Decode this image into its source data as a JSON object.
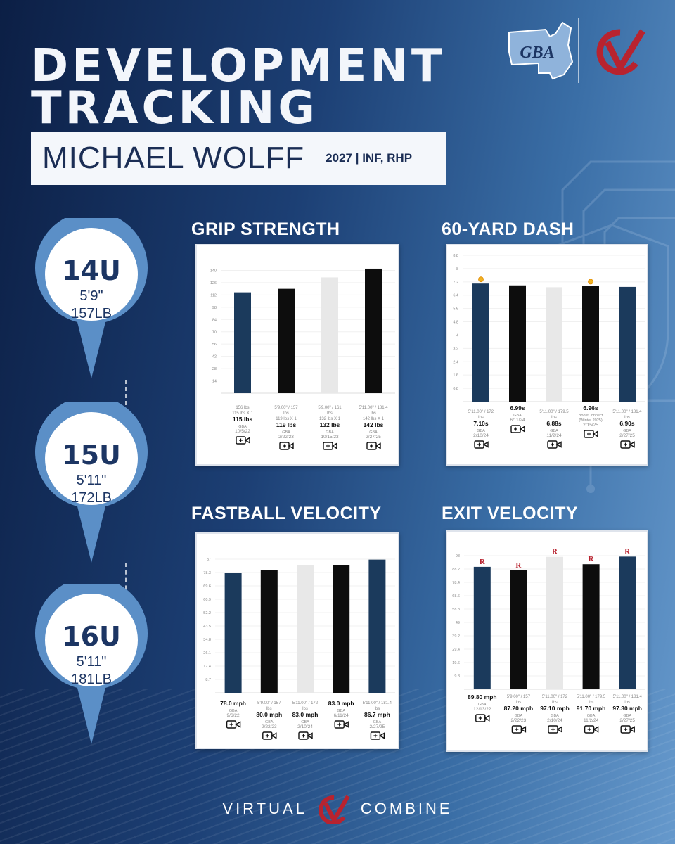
{
  "header": {
    "title_line1": "DEVELOPMENT",
    "title_line2": "TRACKING",
    "player_name": "MICHAEL WOLFF",
    "player_meta": "2027 | INF, RHP"
  },
  "logos": {
    "left_text": "GBA",
    "right_icon": "virtual-combine-check-icon"
  },
  "timeline": [
    {
      "age": "14U",
      "height": "5'9\"",
      "weight": "157LB"
    },
    {
      "age": "15U",
      "height": "5'11\"",
      "weight": "172LB"
    },
    {
      "age": "16U",
      "height": "5'11\"",
      "weight": "181LB"
    }
  ],
  "sections": {
    "grip": "GRIP STRENGTH",
    "dash": "60-YARD DASH",
    "fastball": "FASTBALL VELOCITY",
    "exit": "EXIT VELOCITY"
  },
  "footer": {
    "left": "VIRTUAL",
    "right": "COMBINE"
  },
  "colors": {
    "navy": "#1b3a5c",
    "black": "#0d0d0d",
    "light_gray": "#e8e8e8",
    "accent_red": "#b8232f",
    "medal": "#f0b323"
  },
  "chart_data": [
    {
      "id": "grip",
      "type": "bar",
      "yticks": [
        "140",
        "126",
        "112",
        "98",
        "84",
        "70",
        "56",
        "42",
        "28",
        "14"
      ],
      "ylim": [
        0,
        154
      ],
      "bars": [
        {
          "value": 115,
          "color": "navy",
          "top_label": "",
          "lines": [
            "156 lbs",
            "115 lbs X 1"
          ],
          "value_label": "115 lbs",
          "source": "GBA",
          "date": "10/5/22"
        },
        {
          "value": 119,
          "color": "black",
          "top_label": "",
          "lines": [
            "5'9.00\" / 157",
            "lbs",
            "119 lbs X 1"
          ],
          "value_label": "119 lbs",
          "source": "GBA",
          "date": "2/22/23"
        },
        {
          "value": 132,
          "color": "light_gray",
          "top_label": "",
          "lines": [
            "5'9.00\" / 161",
            "lbs",
            "132 lbs X 1"
          ],
          "value_label": "132 lbs",
          "source": "GBA",
          "date": "10/15/23"
        },
        {
          "value": 142,
          "color": "black",
          "top_label": "",
          "lines": [
            "5'11.00\" / 181.4",
            "lbs",
            "142 lbs X 1"
          ],
          "value_label": "142 lbs",
          "source": "GBA",
          "date": "2/27/25"
        }
      ]
    },
    {
      "id": "dash",
      "type": "bar",
      "yticks": [
        "8.8",
        "8",
        "7.2",
        "6.4",
        "5.6",
        "4.8",
        "4",
        "3.2",
        "2.4",
        "1.6",
        "0.8"
      ],
      "ylim": [
        0,
        8.8
      ],
      "bars": [
        {
          "value": 7.1,
          "color": "navy",
          "medal": true,
          "lines": [
            "5'11.00\" / 172",
            "lbs"
          ],
          "value_label": "7.10s",
          "source": "GBA",
          "date": "2/10/24"
        },
        {
          "value": 6.99,
          "color": "black",
          "medal": false,
          "lines": [],
          "value_label": "6.99s",
          "source": "GBA",
          "date": "6/11/24"
        },
        {
          "value": 6.88,
          "color": "light_gray",
          "medal": false,
          "lines": [
            "5'11.00\" / 179.5",
            "lbs"
          ],
          "value_label": "6.88s",
          "source": "GBA",
          "date": "11/2/24"
        },
        {
          "value": 6.96,
          "color": "black",
          "medal": true,
          "lines": [],
          "value_label": "6.96s",
          "source": "BoostConnect",
          "source2": "(Winter 2025)",
          "date": "2/15/25"
        },
        {
          "value": 6.9,
          "color": "navy",
          "medal": false,
          "lines": [
            "5'11.00\" / 181.4",
            "lbs"
          ],
          "value_label": "6.90s",
          "source": "GBA",
          "date": "2/27/25"
        }
      ]
    },
    {
      "id": "fastball",
      "type": "bar",
      "yticks": [
        "87",
        "78.3",
        "69.6",
        "60.9",
        "52.2",
        "43.5",
        "34.8",
        "26.1",
        "17.4",
        "8.7"
      ],
      "ylim": [
        0,
        87
      ],
      "bars": [
        {
          "value": 78.0,
          "color": "navy",
          "lines": [],
          "value_label": "78.0 mph",
          "source": "GBA",
          "date": "9/6/22"
        },
        {
          "value": 80.0,
          "color": "black",
          "lines": [
            "5'9.00\" / 157",
            "lbs"
          ],
          "value_label": "80.0 mph",
          "source": "GBA",
          "date": "2/22/23"
        },
        {
          "value": 83.0,
          "color": "light_gray",
          "lines": [
            "5'11.00\" / 172",
            "lbs"
          ],
          "value_label": "83.0 mph",
          "source": "GBA",
          "date": "2/10/24"
        },
        {
          "value": 83.0,
          "color": "black",
          "lines": [],
          "value_label": "83.0 mph",
          "source": "GBA",
          "date": "6/11/24"
        },
        {
          "value": 86.7,
          "color": "navy",
          "lines": [
            "5'11.00\" / 181.4",
            "lbs"
          ],
          "value_label": "86.7 mph",
          "source": "GBA",
          "date": "2/27/25"
        }
      ]
    },
    {
      "id": "exit",
      "type": "bar",
      "yticks": [
        "98",
        "88.2",
        "78.4",
        "68.6",
        "58.8",
        "49",
        "39.2",
        "29.4",
        "19.6",
        "9.8"
      ],
      "ylim": [
        0,
        98
      ],
      "bars": [
        {
          "value": 89.8,
          "color": "navy",
          "r_badge": true,
          "lines": [],
          "value_label": "89.80 mph",
          "source": "GBA",
          "date": "12/13/22"
        },
        {
          "value": 87.2,
          "color": "black",
          "r_badge": true,
          "lines": [
            "5'9.00\" / 157",
            "lbs"
          ],
          "value_label": "87.20 mph",
          "source": "GBA",
          "date": "2/22/23"
        },
        {
          "value": 97.1,
          "color": "light_gray",
          "r_badge": true,
          "lines": [
            "5'11.00\" / 172",
            "lbs"
          ],
          "value_label": "97.10 mph",
          "source": "GBA",
          "date": "2/10/24"
        },
        {
          "value": 91.7,
          "color": "black",
          "r_badge": true,
          "lines": [
            "5'11.00\" / 179.5",
            "lbs"
          ],
          "value_label": "91.70 mph",
          "source": "GBA",
          "date": "11/2/24"
        },
        {
          "value": 97.3,
          "color": "navy",
          "r_badge": true,
          "lines": [
            "5'11.00\" / 181.4",
            "lbs"
          ],
          "value_label": "97.30 mph",
          "source": "GBA",
          "date": "2/27/25"
        }
      ]
    }
  ]
}
